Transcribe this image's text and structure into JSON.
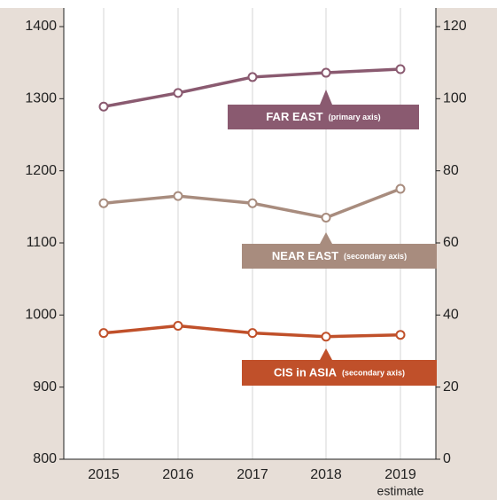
{
  "chart_data": {
    "type": "line",
    "categories": [
      "2015",
      "2016",
      "2017",
      "2018",
      "2019"
    ],
    "category_note": "estimate",
    "ylim": [
      800,
      1400
    ],
    "yticks": [
      800,
      900,
      1000,
      1100,
      1200,
      1300,
      1400
    ],
    "y2lim": [
      0,
      120
    ],
    "y2ticks": [
      0,
      20,
      40,
      60,
      80,
      100,
      120
    ],
    "grid": true,
    "series": [
      {
        "name": "FAR EAST",
        "label_note": "(primary axis)",
        "color": "#8a5a70",
        "axis": "y",
        "values": [
          1289,
          1308,
          1330,
          1336,
          1341
        ]
      },
      {
        "name": "NEAR EAST",
        "label_note": "(secondary axis)",
        "color": "#a88c7e",
        "axis": "y2",
        "values": [
          71,
          73,
          71,
          67,
          75
        ]
      },
      {
        "name": "CIS in ASIA",
        "label_note": "(secondary axis)",
        "color": "#c0502a",
        "axis": "y2",
        "values": [
          35,
          37,
          35,
          34,
          34.5
        ]
      }
    ]
  }
}
